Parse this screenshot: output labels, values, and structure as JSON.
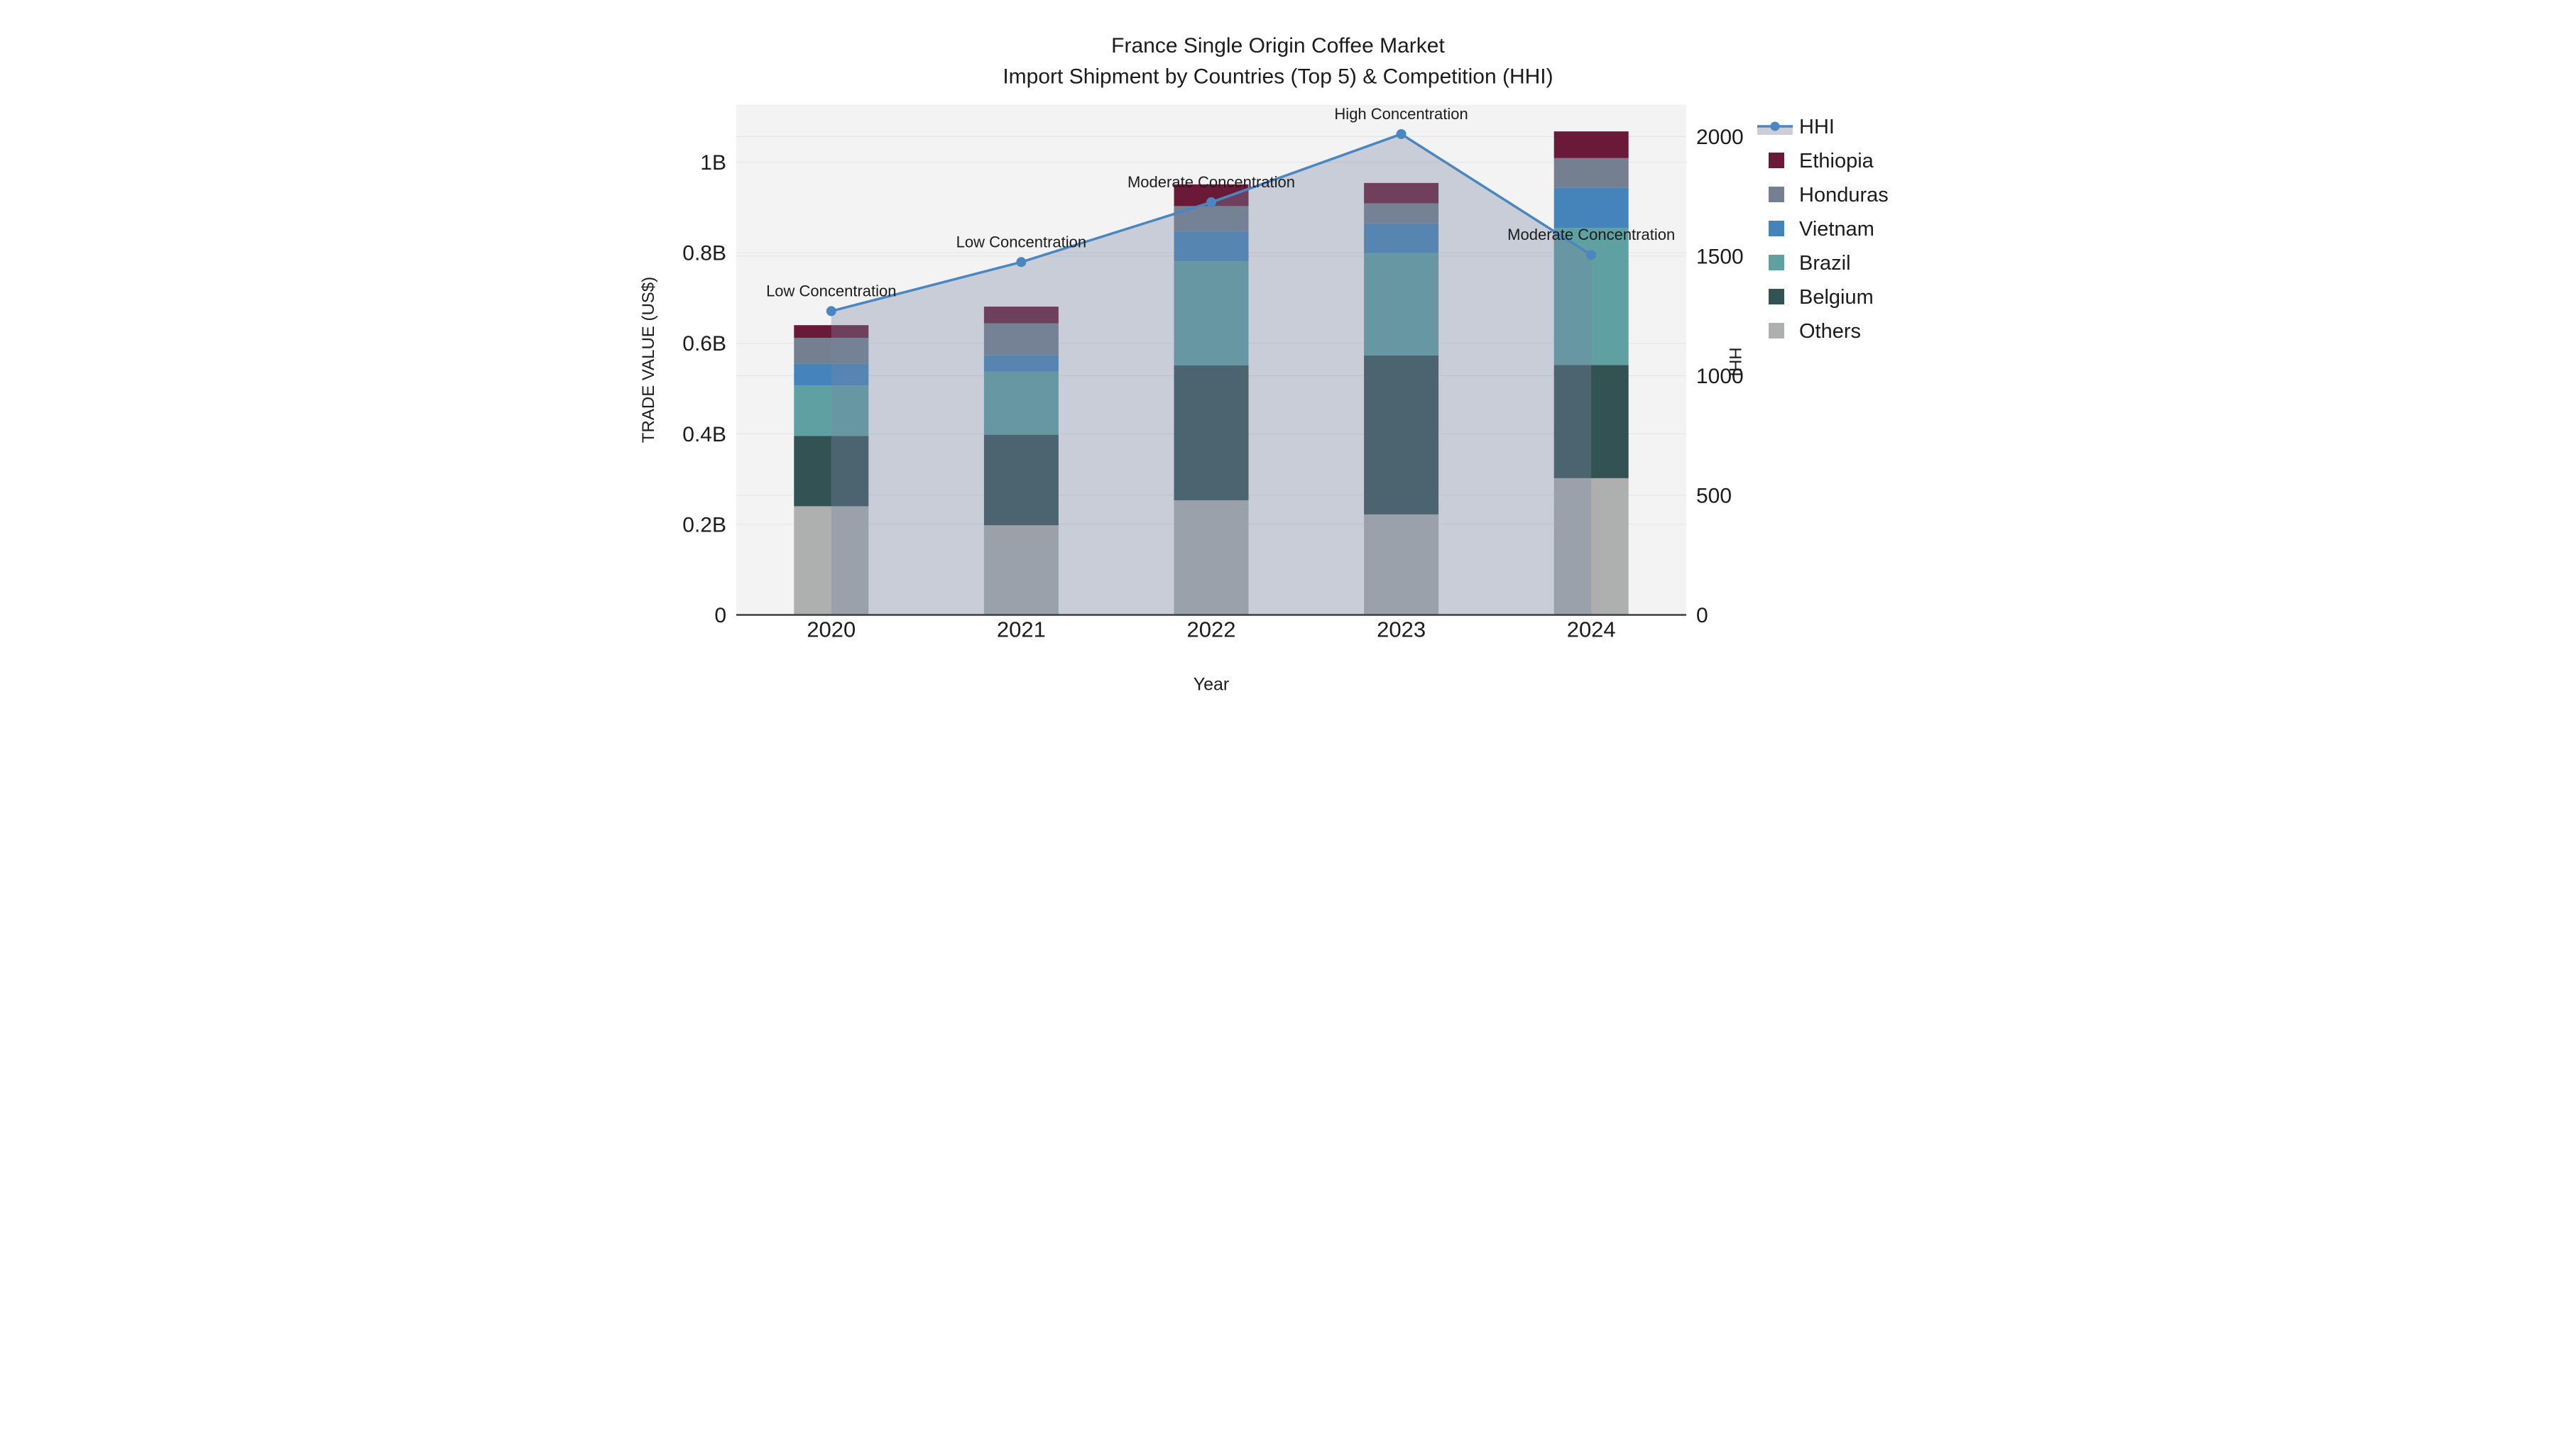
{
  "chart_data": {
    "type": "bar+line",
    "title_line1": "France Single Origin Coffee Market",
    "title_line2": "Import Shipment by Countries (Top 5) & Competition (HHI)",
    "xlabel": "Year",
    "ylabel_left": "TRADE VALUE (US$)",
    "ylabel_right": "HHI",
    "categories": [
      "2020",
      "2021",
      "2022",
      "2023",
      "2024"
    ],
    "series": [
      {
        "name": "Others",
        "color": "#aeb0af",
        "values": [
          0.24,
          0.198,
          0.253,
          0.222,
          0.302
        ]
      },
      {
        "name": "Belgium",
        "color": "#335253",
        "values": [
          0.155,
          0.2,
          0.298,
          0.351,
          0.25
        ]
      },
      {
        "name": "Brazil",
        "color": "#5fa0a3",
        "values": [
          0.112,
          0.139,
          0.23,
          0.226,
          0.303
        ]
      },
      {
        "name": "Vietnam",
        "color": "#4484ba",
        "values": [
          0.048,
          0.037,
          0.066,
          0.066,
          0.089
        ]
      },
      {
        "name": "Honduras",
        "color": "#74808f",
        "values": [
          0.057,
          0.07,
          0.056,
          0.044,
          0.065
        ]
      },
      {
        "name": "Ethiopia",
        "color": "#6a1939",
        "values": [
          0.028,
          0.037,
          0.048,
          0.045,
          0.059
        ]
      }
    ],
    "line": {
      "name": "HHI",
      "color": "#4a86c0",
      "fill_color": "#7987a2",
      "fill_opacity": 0.35,
      "legend_band_color": "#c9ced8",
      "values": [
        1270,
        1475,
        1725,
        2010,
        1505
      ]
    },
    "annotations": [
      "Low Concentration",
      "Low Concentration",
      "Moderate Concentration",
      "High Concentration",
      "Moderate Concentration"
    ],
    "y_left": {
      "ticks": [
        0,
        0.2,
        0.4,
        0.6,
        0.8,
        1.0
      ],
      "labels": [
        "0",
        "0.2B",
        "0.4B",
        "0.6B",
        "0.8B",
        "1B"
      ],
      "max": 1.127
    },
    "y_right": {
      "ticks": [
        0,
        500,
        1000,
        1500,
        2000
      ],
      "labels": [
        "0",
        "500",
        "1000",
        "1500",
        "2000"
      ],
      "max": 2133
    },
    "legend_order": [
      "HHI",
      "Ethiopia",
      "Honduras",
      "Vietnam",
      "Brazil",
      "Belgium",
      "Others"
    ],
    "layout": {
      "plot_bg": "#f3f3f4",
      "grid_color": "#e3e4e7",
      "axis_line_color": "#3f3f3f",
      "text_color": "#1c1c1c"
    }
  }
}
